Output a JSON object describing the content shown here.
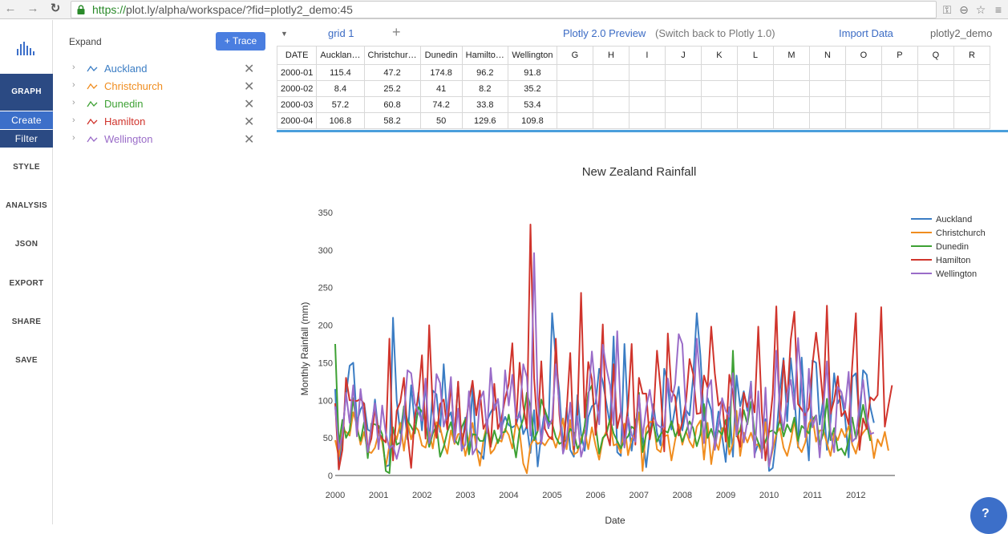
{
  "browser": {
    "url_scheme": "https://",
    "url_rest": "plot.ly/alpha/workspace/?fid=plotly2_demo:45",
    "icons": [
      "back-arrow-icon",
      "forward-arrow-icon",
      "reload-icon",
      "lock-icon",
      "key-icon",
      "zoom-icon",
      "star-icon"
    ]
  },
  "nav": {
    "graph": "GRAPH",
    "create": "Create",
    "filter": "Filter",
    "items": [
      "STYLE",
      "ANALYSIS",
      "JSON",
      "EXPORT",
      "SHARE",
      "SAVE"
    ]
  },
  "panel": {
    "expand_label": "Expand",
    "add_trace_label": "+ Trace",
    "traces": [
      {
        "name": "Auckland",
        "color": "#3b7dc4"
      },
      {
        "name": "Christchurch",
        "color": "#f08d1f"
      },
      {
        "name": "Dunedin",
        "color": "#3ea134"
      },
      {
        "name": "Hamilton",
        "color": "#d0342c"
      },
      {
        "name": "Wellington",
        "color": "#9a6cc8"
      }
    ]
  },
  "grid": {
    "tab": "grid 1",
    "preview": "Plotly 2.0 Preview",
    "switch_back": "(Switch back to Plotly 1.0)",
    "import": "Import Data",
    "user": "plotly2_demo",
    "columns": [
      "DATE",
      "Aucklan…",
      "Christchur…",
      "Dunedin",
      "Hamilto…",
      "Wellington",
      "G",
      "H",
      "I",
      "J",
      "K",
      "L",
      "M",
      "N",
      "O",
      "P",
      "Q",
      "R"
    ],
    "rows": [
      [
        "2000-01",
        "115.4",
        "47.2",
        "174.8",
        "96.2",
        "91.8"
      ],
      [
        "2000-02",
        "8.4",
        "25.2",
        "41",
        "8.2",
        "35.2"
      ],
      [
        "2000-03",
        "57.2",
        "60.8",
        "74.2",
        "33.8",
        "53.4"
      ],
      [
        "2000-04",
        "106.8",
        "58.2",
        "50",
        "129.6",
        "109.8"
      ]
    ]
  },
  "chart_data": {
    "type": "line",
    "title": "New Zealand Rainfall",
    "xlabel": "Date",
    "ylabel": "Monthly Rainfall (mm)",
    "xlim": [
      2000,
      2012.9
    ],
    "ylim": [
      0,
      350
    ],
    "xticks": [
      "2000",
      "2001",
      "2002",
      "2003",
      "2004",
      "2005",
      "2006",
      "2007",
      "2008",
      "2009",
      "2010",
      "2011",
      "2012"
    ],
    "yticks": [
      0,
      50,
      100,
      150,
      200,
      250,
      300,
      350
    ],
    "legend_position": "top-right",
    "series": [
      {
        "name": "Auckland",
        "color": "#3b7dc4",
        "values": [
          115,
          8,
          57,
          107,
          146,
          150,
          71,
          88,
          96,
          61,
          58,
          101,
          56,
          48,
          12,
          14,
          210,
          100,
          56,
          91,
          48,
          120,
          70,
          110,
          60,
          123,
          43,
          113,
          108,
          58,
          148,
          75,
          84,
          52,
          124,
          33,
          77,
          32,
          118,
          35,
          30,
          22,
          73,
          84,
          92,
          101,
          64,
          78,
          67,
          64,
          67,
          85,
          55,
          66,
          30,
          87,
          12,
          55,
          88,
          63,
          216,
          155,
          110,
          38,
          90,
          34,
          25,
          107,
          55,
          33,
          78,
          92,
          96,
          142,
          125,
          96,
          68,
          185,
          31,
          26,
          175,
          75,
          33,
          74,
          80,
          56,
          11,
          55,
          95,
          57,
          40,
          142,
          124,
          61,
          90,
          118,
          60,
          87,
          80,
          131,
          216,
          160,
          73,
          103,
          87,
          48,
          85,
          52,
          18,
          91,
          25,
          133,
          92,
          112,
          86,
          125,
          28,
          43,
          31,
          75,
          6,
          10,
          51,
          114,
          156,
          72,
          156,
          106,
          37,
          157,
          76,
          20,
          153,
          150,
          68,
          102,
          34,
          71,
          136,
          96,
          106,
          77,
          24,
          131,
          136,
          73,
          140,
          134,
          91,
          70
        ]
      },
      {
        "name": "Christchurch",
        "color": "#f08d1f",
        "values": [
          47,
          25,
          61,
          58,
          53,
          84,
          67,
          41,
          58,
          32,
          30,
          37,
          56,
          45,
          12,
          40,
          62,
          48,
          70,
          33,
          72,
          48,
          66,
          60,
          40,
          37,
          58,
          36,
          71,
          64,
          44,
          29,
          60,
          42,
          55,
          56,
          26,
          48,
          70,
          38,
          13,
          47,
          70,
          29,
          35,
          48,
          45,
          62,
          54,
          36,
          71,
          58,
          16,
          3,
          40,
          49,
          42,
          45,
          40,
          48,
          52,
          37,
          53,
          76,
          35,
          74,
          28,
          31,
          49,
          60,
          35,
          64,
          40,
          21,
          48,
          59,
          73,
          40,
          42,
          30,
          69,
          27,
          49,
          55,
          84,
          6,
          63,
          71,
          72,
          35,
          31,
          52,
          54,
          20,
          47,
          68,
          41,
          59,
          45,
          37,
          65,
          73,
          21,
          70,
          15,
          48,
          34,
          63,
          62,
          28,
          43,
          86,
          26,
          57,
          44,
          57,
          41,
          41,
          29,
          71,
          13,
          34,
          56,
          63,
          37,
          26,
          46,
          73,
          39,
          31,
          44,
          69,
          78,
          45,
          60,
          60,
          43,
          26,
          56,
          47,
          62,
          51,
          66,
          41,
          29,
          49,
          57,
          63,
          59,
          23,
          48,
          39,
          58,
          33
        ]
      },
      {
        "name": "Dunedin",
        "color": "#3ea134",
        "values": [
          175,
          41,
          74,
          50,
          60,
          103,
          62,
          46,
          71,
          23,
          69,
          68,
          66,
          55,
          6,
          3,
          64,
          41,
          44,
          92,
          73,
          65,
          56,
          91,
          85,
          71,
          38,
          56,
          66,
          25,
          38,
          58,
          71,
          48,
          41,
          64,
          75,
          28,
          55,
          54,
          46,
          46,
          62,
          39,
          60,
          43,
          57,
          58,
          81,
          52,
          24,
          61,
          75,
          110,
          92,
          47,
          59,
          101,
          87,
          73,
          69,
          51,
          42,
          45,
          47,
          62,
          57,
          36,
          43,
          66,
          110,
          120,
          67,
          29,
          50,
          55,
          75,
          56,
          46,
          36,
          47,
          52,
          65,
          61,
          110,
          31,
          55,
          62,
          69,
          45,
          55,
          60,
          57,
          72,
          52,
          61,
          45,
          58,
          72,
          63,
          39,
          55,
          95,
          50,
          62,
          47,
          60,
          54,
          74,
          38,
          166,
          52,
          60,
          87,
          68,
          98,
          57,
          44,
          33,
          46,
          58,
          60,
          55,
          75,
          52,
          68,
          58,
          77,
          46,
          66,
          61,
          56,
          74,
          80,
          41,
          56,
          102,
          47,
          63,
          33,
          36,
          27,
          48,
          77,
          49,
          65,
          94,
          69,
          46
        ]
      },
      {
        "name": "Hamilton",
        "color": "#d0342c",
        "values": [
          96,
          8,
          34,
          130,
          100,
          100,
          99,
          102,
          95,
          34,
          49,
          89,
          58,
          49,
          44,
          182,
          20,
          86,
          98,
          130,
          55,
          10,
          78,
          105,
          160,
          49,
          200,
          88,
          50,
          95,
          101,
          61,
          121,
          52,
          125,
          42,
          65,
          99,
          126,
          80,
          113,
          62,
          73,
          38,
          122,
          62,
          76,
          102,
          122,
          176,
          68,
          150,
          93,
          63,
          334,
          130,
          60,
          152,
          62,
          52,
          48,
          182,
          81,
          31,
          86,
          163,
          35,
          81,
          243,
          77,
          151,
          128,
          54,
          100,
          201,
          58,
          40,
          148,
          63,
          85,
          50,
          92,
          175,
          41,
          130,
          109,
          109,
          48,
          77,
          166,
          114,
          32,
          189,
          113,
          105,
          53,
          71,
          98,
          155,
          135,
          82,
          83,
          133,
          117,
          198,
          136,
          93,
          100,
          45,
          134,
          110,
          57,
          38,
          110,
          91,
          108,
          84,
          198,
          84,
          20,
          60,
          108,
          225,
          70,
          153,
          98,
          181,
          218,
          95,
          88,
          80,
          90,
          148,
          190,
          147,
          94,
          226,
          82,
          100,
          132,
          79,
          86,
          68,
          147,
          216,
          34,
          76,
          62,
          104,
          100,
          107,
          224,
          65,
          93,
          120
        ]
      },
      {
        "name": "Wellington",
        "color": "#9a6cc8",
        "values": [
          92,
          35,
          53,
          110,
          70,
          120,
          52,
          115,
          75,
          31,
          65,
          96,
          35,
          93,
          56,
          36,
          40,
          22,
          42,
          80,
          140,
          136,
          96,
          84,
          73,
          129,
          43,
          60,
          135,
          123,
          65,
          84,
          131,
          44,
          89,
          34,
          41,
          112,
          28,
          37,
          100,
          112,
          57,
          143,
          87,
          102,
          49,
          140,
          93,
          134,
          76,
          78,
          148,
          131,
          53,
          296,
          102,
          42,
          80,
          64,
          75,
          148,
          92,
          29,
          47,
          97,
          40,
          79,
          25,
          43,
          100,
          165,
          110,
          68,
          174,
          143,
          120,
          67,
          192,
          83,
          37,
          78,
          54,
          45,
          107,
          51,
          90,
          114,
          80,
          68,
          64,
          65,
          129,
          98,
          122,
          188,
          175,
          85,
          50,
          77,
          182,
          120,
          43,
          115,
          127,
          34,
          68,
          103,
          86,
          78,
          136,
          53,
          89,
          44,
          72,
          124,
          24,
          112,
          23,
          117,
          12,
          40,
          166,
          88,
          60,
          109,
          127,
          88,
          183,
          118,
          51,
          142,
          64,
          80,
          24,
          88,
          152,
          58,
          31,
          118,
          111,
          89,
          138,
          45,
          50,
          94,
          127,
          79,
          55,
          57
        ]
      }
    ]
  }
}
